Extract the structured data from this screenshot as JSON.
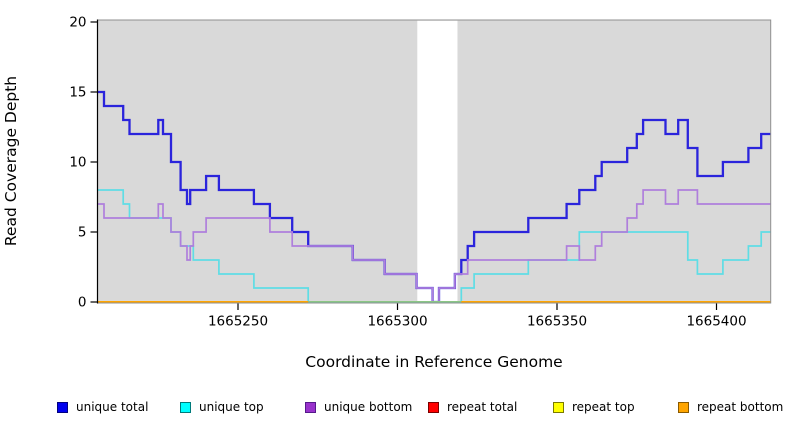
{
  "figure": {
    "background": "#FFFFFF",
    "panel_bg": "#D9D9D9",
    "frame_color": "#8F8F8F",
    "axis_color": "#000000",
    "highlight_band": {
      "x_start": 1665306.2,
      "x_end": 1665318.8,
      "color": "#FFFFFF"
    }
  },
  "chart_data": {
    "type": "line",
    "step": true,
    "xlabel": "Coordinate in Reference Genome",
    "ylabel": "Read Coverage Depth",
    "xlim": [
      1665206,
      1665417
    ],
    "ylim": [
      0,
      20
    ],
    "x_ticks": [
      1665250,
      1665300,
      1665350,
      1665400
    ],
    "y_ticks": [
      0,
      5,
      10,
      15,
      20
    ],
    "grid": false,
    "legend_position": "bottom",
    "series": [
      {
        "name": "unique total",
        "color": "#2B24DC",
        "legend_fill": "#0000EE",
        "legend_border": "#000080",
        "width": 2.3,
        "points": [
          [
            1665206,
            15
          ],
          [
            1665208,
            14
          ],
          [
            1665214,
            13
          ],
          [
            1665216,
            12
          ],
          [
            1665225,
            13
          ],
          [
            1665226.5,
            12
          ],
          [
            1665229,
            10
          ],
          [
            1665232,
            8
          ],
          [
            1665234,
            7
          ],
          [
            1665235,
            8
          ],
          [
            1665240,
            9
          ],
          [
            1665244,
            8
          ],
          [
            1665255,
            7
          ],
          [
            1665260,
            6
          ],
          [
            1665267,
            5
          ],
          [
            1665272,
            4
          ],
          [
            1665286,
            3
          ],
          [
            1665296,
            2
          ],
          [
            1665306,
            1
          ],
          [
            1665311,
            0
          ],
          [
            1665313,
            1
          ],
          [
            1665318,
            2
          ],
          [
            1665320,
            3
          ],
          [
            1665322,
            4
          ],
          [
            1665324,
            5
          ],
          [
            1665341,
            6
          ],
          [
            1665353,
            7
          ],
          [
            1665357,
            8
          ],
          [
            1665362,
            9
          ],
          [
            1665364,
            10
          ],
          [
            1665372,
            11
          ],
          [
            1665375,
            12
          ],
          [
            1665377,
            13
          ],
          [
            1665384,
            12
          ],
          [
            1665388,
            13
          ],
          [
            1665391,
            11
          ],
          [
            1665394,
            9
          ],
          [
            1665402,
            10
          ],
          [
            1665410,
            11
          ],
          [
            1665414,
            12
          ]
        ]
      },
      {
        "name": "unique top",
        "color": "#5FDDE5",
        "legend_fill": "#00FFFF",
        "legend_border": "#007A7A",
        "width": 1.7,
        "points": [
          [
            1665206,
            8
          ],
          [
            1665214,
            7
          ],
          [
            1665216,
            6
          ],
          [
            1665229,
            5
          ],
          [
            1665232,
            4
          ],
          [
            1665236,
            3
          ],
          [
            1665244,
            2
          ],
          [
            1665255,
            1
          ],
          [
            1665272,
            0
          ],
          [
            1665320,
            1
          ],
          [
            1665324,
            2
          ],
          [
            1665341,
            3
          ],
          [
            1665357,
            5
          ],
          [
            1665391,
            3
          ],
          [
            1665394,
            2
          ],
          [
            1665402,
            3
          ],
          [
            1665410,
            4
          ],
          [
            1665414,
            5
          ]
        ]
      },
      {
        "name": "unique bottom",
        "color": "#AF7FDC",
        "legend_fill": "#9932CC",
        "legend_border": "#551A8B",
        "width": 1.7,
        "points": [
          [
            1665206,
            7
          ],
          [
            1665208,
            6
          ],
          [
            1665225,
            7
          ],
          [
            1665226.5,
            6
          ],
          [
            1665229,
            5
          ],
          [
            1665232,
            4
          ],
          [
            1665234,
            3
          ],
          [
            1665235,
            4
          ],
          [
            1665236,
            5
          ],
          [
            1665240,
            6
          ],
          [
            1665260,
            5
          ],
          [
            1665267,
            4
          ],
          [
            1665286,
            3
          ],
          [
            1665296,
            2
          ],
          [
            1665306,
            1
          ],
          [
            1665311,
            0
          ],
          [
            1665313,
            1
          ],
          [
            1665318,
            2
          ],
          [
            1665322,
            3
          ],
          [
            1665353,
            4
          ],
          [
            1665357,
            3
          ],
          [
            1665362,
            4
          ],
          [
            1665364,
            5
          ],
          [
            1665372,
            6
          ],
          [
            1665375,
            7
          ],
          [
            1665377,
            8
          ],
          [
            1665384,
            7
          ],
          [
            1665388,
            8
          ],
          [
            1665394,
            7
          ]
        ]
      },
      {
        "name": "repeat total",
        "color": "#DD2222",
        "legend_fill": "#FF0000",
        "legend_border": "#7A0000",
        "width": 1.7,
        "points": [
          [
            1665206,
            0
          ]
        ]
      },
      {
        "name": "repeat top",
        "color": "#EEEE33",
        "legend_fill": "#FFFF00",
        "legend_border": "#7A7A00",
        "width": 1.7,
        "points": [
          [
            1665206,
            0
          ]
        ]
      },
      {
        "name": "repeat bottom",
        "color": "#FFA500",
        "legend_fill": "#FFA500",
        "legend_border": "#8A5A00",
        "width": 2,
        "points": [
          [
            1665206,
            0
          ]
        ]
      }
    ],
    "overlay_blend_segment": {
      "color": "#7CCB97",
      "y": 0,
      "x_start": 1665272,
      "x_end": 1665320
    }
  },
  "legend_x_positions": [
    57,
    180,
    305,
    428,
    553,
    678
  ]
}
